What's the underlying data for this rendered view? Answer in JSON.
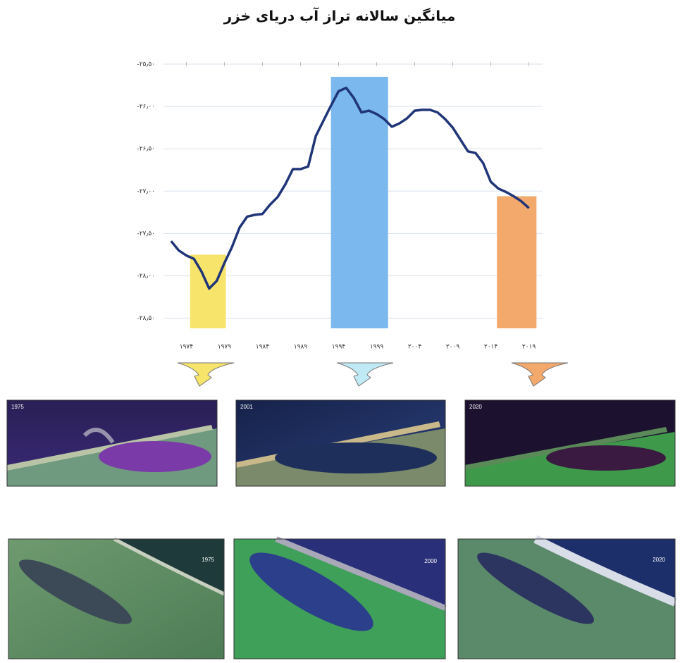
{
  "chart_data": {
    "type": "line",
    "title": "میانگین سالانه تراز آب دریای خزر",
    "x": [
      1972,
      1973,
      1974,
      1975,
      1976,
      1977,
      1978,
      1979,
      1980,
      1981,
      1982,
      1983,
      1984,
      1985,
      1986,
      1987,
      1988,
      1989,
      1990,
      1991,
      1992,
      1993,
      1994,
      1995,
      1996,
      1997,
      1998,
      1999,
      2000,
      2001,
      2002,
      2003,
      2004,
      2005,
      2006,
      2007,
      2008,
      2009,
      2010,
      2011,
      2012,
      2013,
      2014,
      2015,
      2016,
      2017,
      2018,
      2019
    ],
    "series": [
      {
        "color": "#1f3578",
        "values": [
          -27.59,
          -27.7,
          -27.76,
          -27.8,
          -27.95,
          -28.15,
          -28.06,
          -27.85,
          -27.66,
          -27.43,
          -27.3,
          -27.28,
          -27.27,
          -27.16,
          -27.07,
          -26.92,
          -26.74,
          -26.74,
          -26.71,
          -26.35,
          -26.17,
          -25.99,
          -25.82,
          -25.78,
          -25.9,
          -26.07,
          -26.05,
          -26.09,
          -26.15,
          -26.24,
          -26.2,
          -26.14,
          -26.05,
          -26.04,
          -26.04,
          -26.07,
          -26.15,
          -26.25,
          -26.39,
          -26.53,
          -26.55,
          -26.67,
          -26.89,
          -26.97,
          -27.01,
          -27.06,
          -27.12,
          -27.2
        ]
      }
    ],
    "highlights": [
      {
        "from": 1974.5,
        "to": 1979.2,
        "top": -27.75,
        "color": "#f7e46a"
      },
      {
        "from": 1993,
        "to": 2000.5,
        "top": -25.65,
        "color": "#7ab8ee"
      },
      {
        "from": 2014.8,
        "to": 2020,
        "top": -27.06,
        "color": "#f4a96c"
      }
    ],
    "xlim": [
      1971,
      2020.8
    ],
    "ylim": [
      -28.62,
      -25.45
    ],
    "xticks": [
      {
        "value": 1974,
        "label": "۱۹۷۴"
      },
      {
        "value": 1979,
        "label": "۱۹۷۹"
      },
      {
        "value": 1984,
        "label": "۱۹۸۴"
      },
      {
        "value": 1989,
        "label": "۱۹۸۹"
      },
      {
        "value": 1994,
        "label": "۱۹۹۴"
      },
      {
        "value": 1999,
        "label": "۱۹۹۹"
      },
      {
        "value": 2004,
        "label": "۲۰۰۴"
      },
      {
        "value": 2009,
        "label": "۲۰۰۹"
      },
      {
        "value": 2014,
        "label": "۲۰۱۴"
      },
      {
        "value": 2019,
        "label": "۲۰۱۹"
      }
    ],
    "yticks": [
      {
        "value": -25.5,
        "label": "-۲۵٫۵۰"
      },
      {
        "value": -26,
        "label": "-۲۶٫۰۰"
      },
      {
        "value": -26.5,
        "label": "-۲۶٫۵۰"
      },
      {
        "value": -27,
        "label": "-۲۷٫۰۰"
      },
      {
        "value": -27.5,
        "label": "-۲۷٫۵۰"
      },
      {
        "value": -28,
        "label": "-۲۸٫۰۰"
      },
      {
        "value": -28.5,
        "label": "-۲۸٫۵۰"
      }
    ],
    "grid": true
  },
  "panels": [
    {
      "label": "1975"
    },
    {
      "label": "2001"
    },
    {
      "label": "2020"
    },
    {
      "label": "1975"
    },
    {
      "label": "2000"
    },
    {
      "label": "2020"
    }
  ]
}
